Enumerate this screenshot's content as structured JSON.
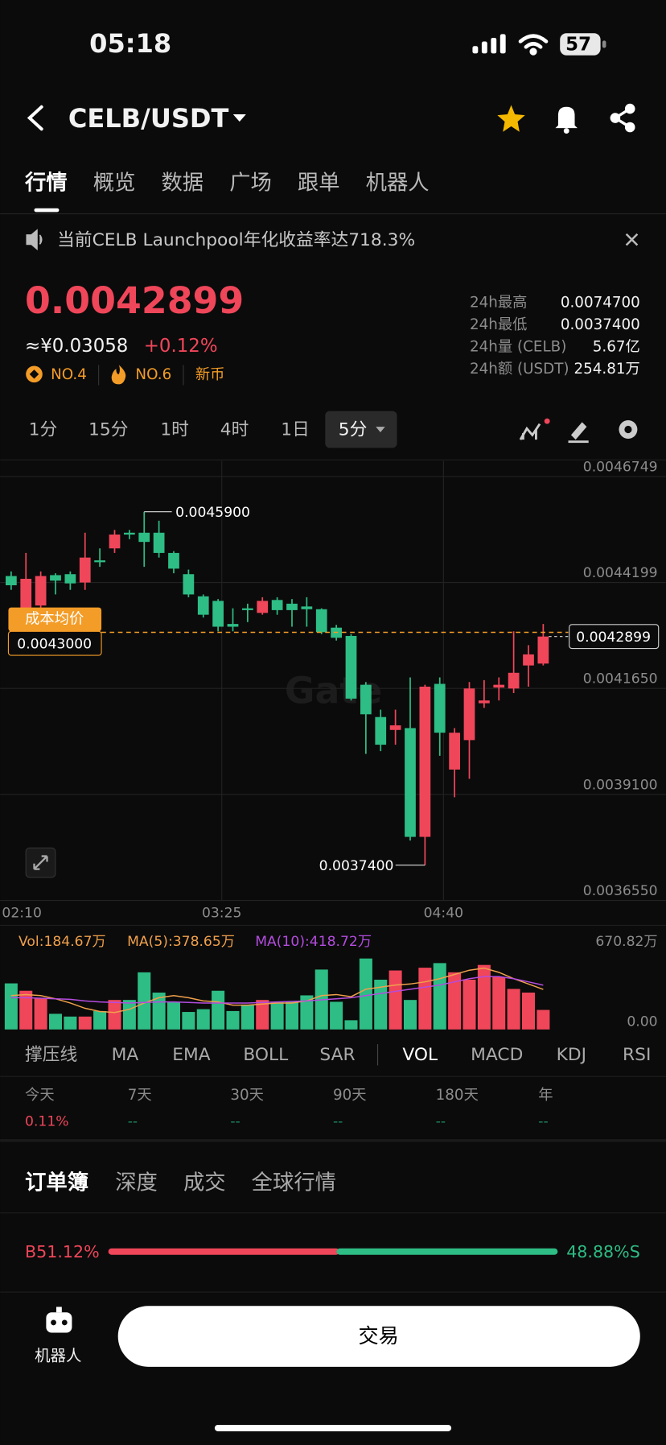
{
  "status": {
    "time": "05:18",
    "battery": "57"
  },
  "header": {
    "pair": "CELB/USDT"
  },
  "tabs": [
    "行情",
    "概览",
    "数据",
    "广场",
    "跟单",
    "机器人"
  ],
  "banner": "当前CELB Launchpool年化收益率达718.3%",
  "price": {
    "last": "0.0042899",
    "cny": "≈¥0.03058",
    "change": "+0.12%",
    "badges": [
      "NO.4",
      "NO.6",
      "新币"
    ]
  },
  "stats": [
    {
      "label": "24h最高",
      "value": "0.0074700"
    },
    {
      "label": "24h最低",
      "value": "0.0037400"
    },
    {
      "label": "24h量 (CELB)",
      "value": "5.67亿"
    },
    {
      "label": "24h额 (USDT)",
      "value": "254.81万"
    }
  ],
  "intervals": [
    "1分",
    "15分",
    "1时",
    "4时",
    "1日"
  ],
  "interval_selected": "5分",
  "chart_data": [
    {
      "type": "candlestick",
      "watermark": "Gate",
      "categories": [
        "02:10",
        null,
        null,
        null,
        null,
        null,
        null,
        null,
        null,
        null,
        null,
        null,
        null,
        null,
        "03:25",
        null,
        null,
        null,
        null,
        null,
        null,
        null,
        null,
        null,
        null,
        null,
        null,
        null,
        null,
        "04:40",
        null,
        null,
        null,
        null,
        null,
        null,
        null
      ],
      "open": [
        0.0044354,
        0.0043578,
        0.0043645,
        0.0044376,
        0.0044399,
        0.0044199,
        0.0044731,
        0.0045019,
        0.0045396,
        0.0045396,
        0.0045396,
        0.0044909,
        0.0044399,
        0.0043866,
        0.0043756,
        0.0043201,
        0.0043578,
        0.0043467,
        0.0043778,
        0.0043689,
        0.0043622,
        0.0043556,
        0.0043112,
        0.0042913,
        0.0041738,
        0.0040962,
        0.0040651,
        0.0040696,
        0.0038079,
        0.004176,
        0.0039698,
        0.0040407,
        0.0041294,
        0.0041671,
        0.0041649,
        0.0042203,
        0.0042248
      ],
      "high": [
        0.0044465,
        0.0044909,
        0.0044465,
        0.0044421,
        0.0044465,
        0.0045396,
        0.0045019,
        0.0045463,
        0.0045463,
        0.00459,
        0.0045685,
        0.0044953,
        0.0044509,
        0.0043911,
        0.00438,
        0.0043578,
        0.0043689,
        0.0043844,
        0.0043844,
        0.00438,
        0.0043844,
        0.0043578,
        0.0043179,
        0.0042957,
        0.0041804,
        0.0041139,
        0.0041139,
        0.0041915,
        0.0041738,
        0.0041915,
        0.0040696,
        0.0041804,
        0.0041849,
        0.0041915,
        0.0043024,
        0.0042691,
        0.0043201
      ],
      "low": [
        0.0044022,
        0.0043534,
        0.0043578,
        0.0043911,
        0.0044022,
        0.0044022,
        0.0044576,
        0.0044909,
        0.0045241,
        0.0044576,
        0.0044798,
        0.0044421,
        0.0043844,
        0.0043356,
        0.0043024,
        0.0043024,
        0.0043246,
        0.0043423,
        0.0043423,
        0.0043135,
        0.0043135,
        0.0042957,
        0.0042802,
        0.0041361,
        0.0040075,
        0.0040141,
        0.0040296,
        0.003799,
        0.00374,
        0.004003,
        0.0039032,
        0.0039476,
        0.0041183,
        0.0041361,
        0.0041538,
        0.0041693,
        0.0042203
      ],
      "close": [
        0.0044132,
        0.0044288,
        0.0044354,
        0.0044243,
        0.0044177,
        0.0044798,
        0.0044687,
        0.0045352,
        0.0045352,
        0.0045175,
        0.0044909,
        0.0044532,
        0.0043911,
        0.0043423,
        0.0043135,
        0.0043135,
        0.0043534,
        0.0043756,
        0.0043534,
        0.0043534,
        0.0043556,
        0.0043002,
        0.0042869,
        0.0041405,
        0.0041028,
        0.0040296,
        0.0040762,
        0.0038079,
        0.0041693,
        0.0040585,
        0.0040585,
        0.0041649,
        0.0041361,
        0.0041738,
        0.0042026,
        0.0042469,
        0.0042899
      ],
      "up_color": "#f0465a",
      "down_color": "#2ebd85",
      "ylim": [
        0.003655,
        0.0047126
      ],
      "yticks": [
        {
          "value": 0.003655,
          "label": "0.0036550"
        },
        {
          "value": 0.00391,
          "label": "0.0039100"
        },
        {
          "value": 0.004165,
          "label": "0.0041650"
        },
        0.0044199,
        0.0046749
      ],
      "grid": true,
      "max_label": {
        "value": 0.00459,
        "label": "0.0045900"
      },
      "min_label": {
        "value": 0.00374,
        "label": "0.0037400"
      },
      "cost_line": {
        "name": "成本均价",
        "value": 0.0043,
        "label": "0.0043000",
        "color": "#f39c27"
      },
      "last_price": 0.0042899
    },
    {
      "type": "bar",
      "series": [
        {
          "name": "Vol:184.67万",
          "color": "#f0a04b",
          "values": [
            435.6,
            365.9,
            296.2,
            148.1,
            122.0,
            122.0,
            174.2,
            278.8,
            278.8,
            540.1,
            348.5,
            261.4,
            165.5,
            191.7,
            365.9,
            174.2,
            235.2,
            278.8,
            261.4,
            261.4,
            322.3,
            566.3,
            261.4,
            87.1,
            670.82,
            470.4,
            557.6,
            278.8,
            583.7,
            627.3,
            540.1,
            470.4,
            609.8,
            496.6,
            383.3,
            348.5,
            184.67
          ]
        },
        {
          "name": "MA(5):378.65万",
          "type": "line",
          "color": "#f0a04b",
          "values": [
            320,
            330,
            320,
            290,
            250,
            200,
            170,
            160,
            190,
            250,
            300,
            320,
            300,
            270,
            260,
            230,
            230,
            240,
            250,
            250,
            270,
            320,
            330,
            310,
            380,
            400,
            420,
            430,
            450,
            480,
            520,
            560,
            580,
            540,
            480,
            430,
            378.65
          ]
        },
        {
          "name": "MA(10):418.72万",
          "type": "line",
          "color": "#b44ce0",
          "values": [
            300,
            300,
            295,
            290,
            285,
            270,
            260,
            255,
            250,
            255,
            260,
            260,
            255,
            250,
            250,
            250,
            250,
            255,
            260,
            265,
            270,
            280,
            290,
            300,
            320,
            340,
            360,
            380,
            400,
            420,
            450,
            480,
            500,
            500,
            480,
            450,
            418.72
          ]
        }
      ],
      "ylim": [
        0,
        670.82
      ],
      "yticks": [
        {
          "value": 0,
          "label": "0.00"
        },
        {
          "value": 670.82,
          "label": "670.82万"
        }
      ]
    }
  ],
  "indicators": [
    "撑压线",
    "MA",
    "EMA",
    "BOLL",
    "SAR",
    "VOL",
    "MACD",
    "KDJ",
    "RSI"
  ],
  "indicator_selected": 5,
  "periods": [
    {
      "label": "今天",
      "value": "0.11%"
    },
    {
      "label": "7天",
      "value": "--"
    },
    {
      "label": "30天",
      "value": "--"
    },
    {
      "label": "90天",
      "value": "--"
    },
    {
      "label": "180天",
      "value": "--"
    },
    {
      "label": "年",
      "value": "--"
    }
  ],
  "orderbook_tabs": [
    "订单簿",
    "深度",
    "成交",
    "全球行情"
  ],
  "ratio": {
    "buy": {
      "value": 51.12,
      "label": "B51.12%"
    },
    "sell": {
      "value": 48.88,
      "label": "48.88%S"
    }
  },
  "bottom": {
    "robot": "机器人",
    "trade": "交易"
  }
}
